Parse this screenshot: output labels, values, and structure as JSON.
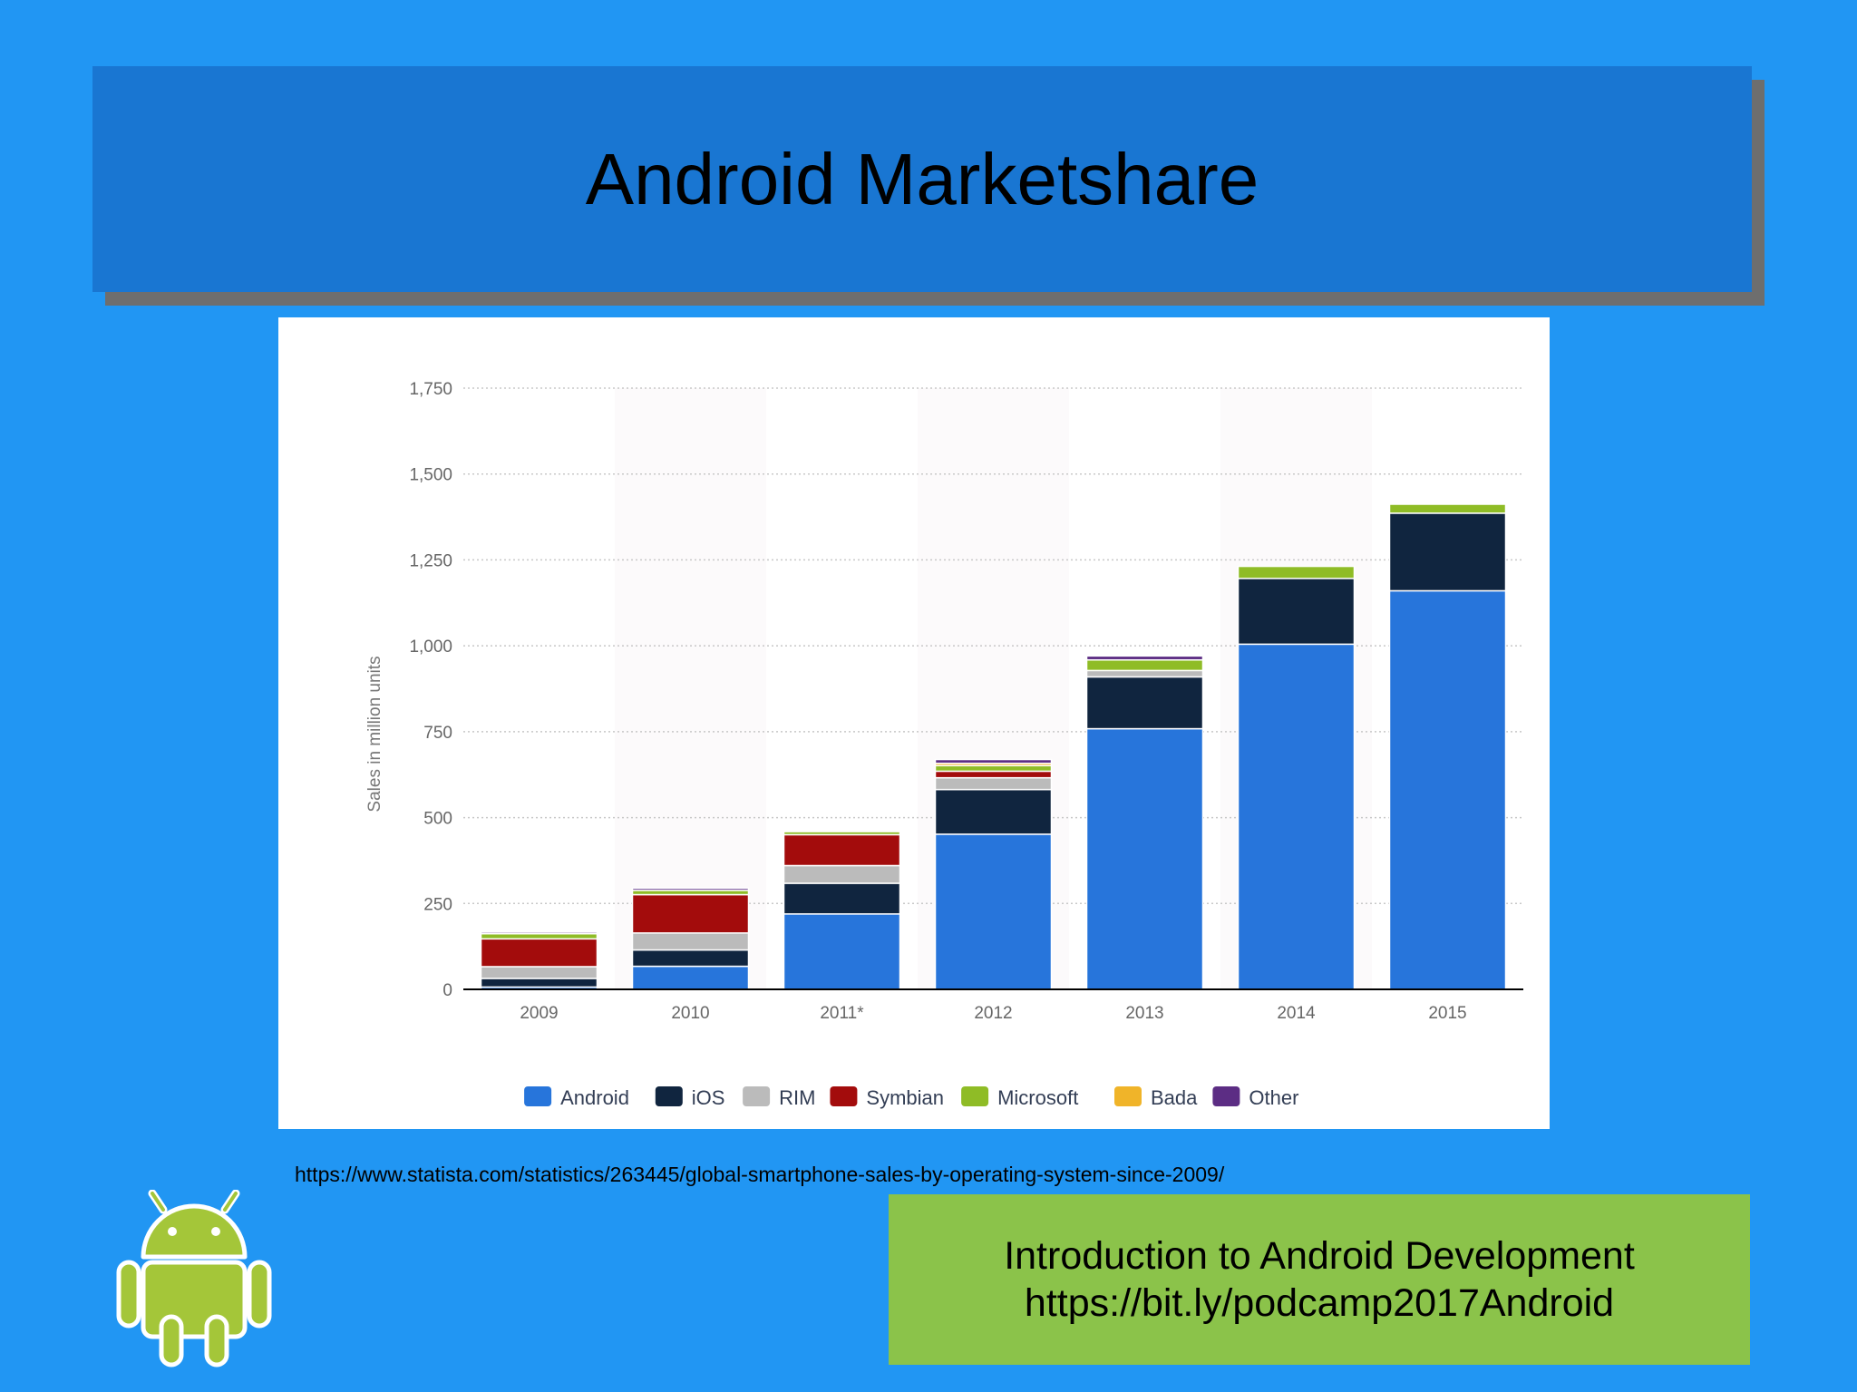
{
  "slide": {
    "title": "Android Marketshare",
    "source_url": "https://www.statista.com/statistics/263445/global-smartphone-sales-by-operating-system-since-2009/",
    "footer_line1": "Introduction to Android Development",
    "footer_line2": "https://bit.ly/podcamp2017Android",
    "logo_icon": "android-robot-icon",
    "colors": {
      "background": "#2196f3",
      "title_box": "#1976d2",
      "footer_box": "#8bc34a",
      "android_logo": "#a4c639"
    }
  },
  "chart_data": {
    "type": "bar",
    "stacked": true,
    "title": "",
    "xlabel": "",
    "ylabel": "Sales in million units",
    "ylim": [
      0,
      1750
    ],
    "yticks": [
      0,
      250,
      500,
      750,
      1000,
      1250,
      1500,
      1750
    ],
    "ytick_labels": [
      "0",
      "250",
      "500",
      "750",
      "1,000",
      "1,250",
      "1,500",
      "1,750"
    ],
    "categories": [
      "2009",
      "2010",
      "2011*",
      "2012",
      "2013",
      "2014",
      "2015"
    ],
    "grid": true,
    "legend_position": "bottom",
    "series": [
      {
        "name": "Android",
        "color": "#2775db",
        "values": [
          6.8,
          67.2,
          219.5,
          451.6,
          758.7,
          1004.7,
          1160.2
        ]
      },
      {
        "name": "iOS",
        "color": "#10253f",
        "values": [
          25,
          47.5,
          89.3,
          130.1,
          150.8,
          191.4,
          225.8
        ]
      },
      {
        "name": "RIM",
        "color": "#bbbbbb",
        "values": [
          34.3,
          49.4,
          51.5,
          34.2,
          18.6,
          0,
          0
        ]
      },
      {
        "name": "Symbian",
        "color": "#a30c0c",
        "values": [
          80.9,
          111.6,
          89.9,
          19.1,
          0,
          0,
          0
        ]
      },
      {
        "name": "Microsoft",
        "color": "#8fbc26",
        "values": [
          15,
          12.4,
          8.8,
          16.2,
          30.8,
          35.1,
          26.1
        ]
      },
      {
        "name": "Bada",
        "color": "#f0b429",
        "values": [
          0,
          0,
          0,
          6.8,
          0,
          0,
          0
        ]
      },
      {
        "name": "Other",
        "color": "#5c2d84",
        "values": [
          4.6,
          6.2,
          0,
          11,
          11.5,
          0,
          0
        ]
      }
    ]
  }
}
